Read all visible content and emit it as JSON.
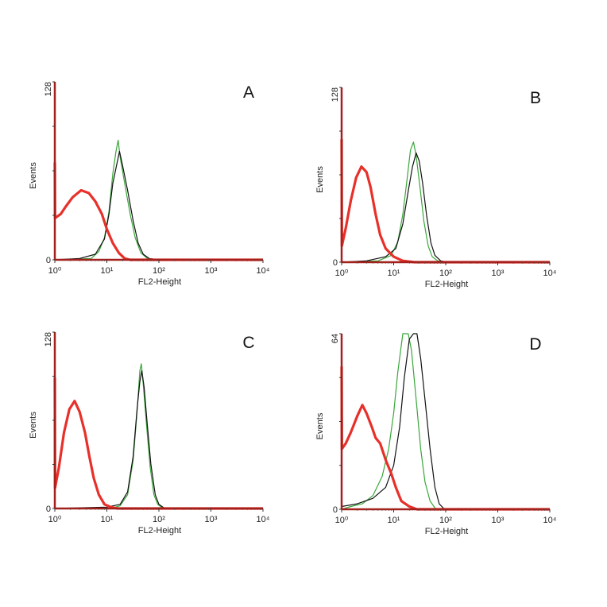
{
  "chart_data": [
    {
      "type": "line",
      "panel_label": "A",
      "xlabel": "FL2-Height",
      "ylabel": "Events",
      "xscale": "log",
      "xlim": [
        1,
        10000
      ],
      "ylim": [
        0,
        128
      ],
      "x_tick_labels": [
        "10⁰",
        "10¹",
        "10²",
        "10³",
        "10⁴"
      ],
      "y_tick_labels": [
        "0",
        "128"
      ],
      "grid": false,
      "series": [
        {
          "color": "#e8302a",
          "style": "thick",
          "points": [
            [
              1,
              70
            ],
            [
              1.01,
              30
            ],
            [
              1.3,
              33
            ],
            [
              1.6,
              38
            ],
            [
              2.2,
              45
            ],
            [
              3.2,
              50
            ],
            [
              4.5,
              48
            ],
            [
              6,
              42
            ],
            [
              8,
              33
            ],
            [
              10,
              22
            ],
            [
              13,
              12
            ],
            [
              17,
              5
            ],
            [
              22,
              1
            ],
            [
              28,
              0
            ],
            [
              10000,
              0
            ]
          ]
        },
        {
          "color": "#3aa63a",
          "style": "thin",
          "points": [
            [
              1,
              0
            ],
            [
              5,
              1
            ],
            [
              7,
              6
            ],
            [
              9,
              16
            ],
            [
              11,
              35
            ],
            [
              13,
              62
            ],
            [
              15,
              78
            ],
            [
              16.5,
              86
            ],
            [
              18,
              74
            ],
            [
              22,
              55
            ],
            [
              28,
              33
            ],
            [
              35,
              16
            ],
            [
              45,
              5
            ],
            [
              60,
              1
            ],
            [
              100,
              0
            ],
            [
              10000,
              0
            ]
          ]
        },
        {
          "color": "#111111",
          "style": "thin",
          "points": [
            [
              1,
              0
            ],
            [
              3,
              1
            ],
            [
              6,
              4
            ],
            [
              9,
              15
            ],
            [
              11,
              33
            ],
            [
              13,
              55
            ],
            [
              15,
              66
            ],
            [
              17.5,
              78
            ],
            [
              20,
              68
            ],
            [
              25,
              50
            ],
            [
              32,
              28
            ],
            [
              40,
              12
            ],
            [
              50,
              4
            ],
            [
              65,
              1
            ],
            [
              100,
              0
            ],
            [
              10000,
              0
            ]
          ]
        }
      ]
    },
    {
      "type": "line",
      "panel_label": "B",
      "xlabel": "FL2-Height",
      "ylabel": "Events",
      "xscale": "log",
      "xlim": [
        1,
        10000
      ],
      "ylim": [
        0,
        128
      ],
      "x_tick_labels": [
        "10⁰",
        "10¹",
        "10²",
        "10³",
        "10⁴"
      ],
      "y_tick_labels": [
        "0",
        "128"
      ],
      "grid": false,
      "series": [
        {
          "color": "#e8302a",
          "style": "thick",
          "points": [
            [
              1,
              90
            ],
            [
              1.01,
              12
            ],
            [
              1.2,
              25
            ],
            [
              1.5,
              45
            ],
            [
              1.9,
              62
            ],
            [
              2.4,
              70
            ],
            [
              3,
              66
            ],
            [
              3.6,
              55
            ],
            [
              4.5,
              35
            ],
            [
              5.5,
              20
            ],
            [
              7,
              10
            ],
            [
              10,
              4
            ],
            [
              15,
              1
            ],
            [
              25,
              0
            ],
            [
              10000,
              0
            ]
          ]
        },
        {
          "color": "#3aa63a",
          "style": "thin",
          "points": [
            [
              1,
              0
            ],
            [
              5,
              1
            ],
            [
              9,
              5
            ],
            [
              12,
              15
            ],
            [
              15,
              35
            ],
            [
              18,
              60
            ],
            [
              21,
              82
            ],
            [
              24,
              88
            ],
            [
              27,
              78
            ],
            [
              32,
              55
            ],
            [
              38,
              30
            ],
            [
              46,
              12
            ],
            [
              55,
              4
            ],
            [
              70,
              1
            ],
            [
              100,
              0
            ],
            [
              10000,
              0
            ]
          ]
        },
        {
          "color": "#111111",
          "style": "thin",
          "points": [
            [
              1,
              0
            ],
            [
              3,
              1
            ],
            [
              7,
              4
            ],
            [
              11,
              10
            ],
            [
              15,
              28
            ],
            [
              19,
              52
            ],
            [
              23,
              70
            ],
            [
              27,
              80
            ],
            [
              31,
              74
            ],
            [
              36,
              58
            ],
            [
              43,
              34
            ],
            [
              52,
              14
            ],
            [
              62,
              5
            ],
            [
              80,
              1
            ],
            [
              110,
              0
            ],
            [
              10000,
              0
            ]
          ]
        }
      ]
    },
    {
      "type": "line",
      "panel_label": "C",
      "xlabel": "FL2-Height",
      "ylabel": "Events",
      "xscale": "log",
      "xlim": [
        1,
        10000
      ],
      "ylim": [
        0,
        128
      ],
      "x_tick_labels": [
        "10⁰",
        "10¹",
        "10²",
        "10³",
        "10⁴"
      ],
      "y_tick_labels": [
        "0",
        "128"
      ],
      "grid": false,
      "series": [
        {
          "color": "#e8302a",
          "style": "thick",
          "points": [
            [
              1,
              95
            ],
            [
              1.01,
              15
            ],
            [
              1.2,
              30
            ],
            [
              1.5,
              55
            ],
            [
              1.9,
              72
            ],
            [
              2.4,
              78
            ],
            [
              3,
              70
            ],
            [
              3.8,
              55
            ],
            [
              4.6,
              38
            ],
            [
              5.6,
              22
            ],
            [
              7,
              10
            ],
            [
              9,
              3
            ],
            [
              12,
              1
            ],
            [
              16,
              0
            ],
            [
              10000,
              0
            ]
          ]
        },
        {
          "color": "#3aa63a",
          "style": "thin",
          "points": [
            [
              1,
              0
            ],
            [
              12,
              0
            ],
            [
              18,
              2
            ],
            [
              25,
              10
            ],
            [
              32,
              35
            ],
            [
              38,
              70
            ],
            [
              43,
              100
            ],
            [
              46,
              105
            ],
            [
              50,
              90
            ],
            [
              58,
              60
            ],
            [
              68,
              30
            ],
            [
              80,
              10
            ],
            [
              95,
              3
            ],
            [
              120,
              0
            ],
            [
              10000,
              0
            ]
          ]
        },
        {
          "color": "#111111",
          "style": "thin",
          "points": [
            [
              1,
              0
            ],
            [
              10,
              1
            ],
            [
              18,
              3
            ],
            [
              25,
              12
            ],
            [
              32,
              38
            ],
            [
              38,
              72
            ],
            [
              43,
              92
            ],
            [
              47,
              100
            ],
            [
              52,
              88
            ],
            [
              60,
              60
            ],
            [
              70,
              32
            ],
            [
              85,
              10
            ],
            [
              100,
              3
            ],
            [
              130,
              0
            ],
            [
              10000,
              0
            ]
          ]
        }
      ]
    },
    {
      "type": "line",
      "panel_label": "D",
      "xlabel": "FL2-Height",
      "ylabel": "Events",
      "xscale": "log",
      "xlim": [
        1,
        10000
      ],
      "ylim": [
        0,
        64
      ],
      "x_tick_labels": [
        "10⁰",
        "10¹",
        "10²",
        "10³",
        "10⁴"
      ],
      "y_tick_labels": [
        "0",
        "64"
      ],
      "grid": false,
      "series": [
        {
          "color": "#e8302a",
          "style": "thick",
          "points": [
            [
              1,
              52
            ],
            [
              1.01,
              22
            ],
            [
              1.2,
              24
            ],
            [
              1.5,
              28
            ],
            [
              2,
              34
            ],
            [
              2.5,
              38
            ],
            [
              3,
              35
            ],
            [
              3.8,
              30
            ],
            [
              4.5,
              26
            ],
            [
              5.5,
              24
            ],
            [
              7,
              18
            ],
            [
              9,
              13
            ],
            [
              11,
              8
            ],
            [
              14,
              3
            ],
            [
              20,
              1
            ],
            [
              28,
              0
            ],
            [
              10000,
              0
            ]
          ]
        },
        {
          "color": "#3aa63a",
          "style": "thin",
          "points": [
            [
              1,
              0
            ],
            [
              1.5,
              1
            ],
            [
              2.5,
              2
            ],
            [
              4,
              5
            ],
            [
              6,
              12
            ],
            [
              8,
              22
            ],
            [
              10,
              35
            ],
            [
              12,
              50
            ],
            [
              15,
              64
            ],
            [
              19,
              64
            ],
            [
              22,
              58
            ],
            [
              27,
              40
            ],
            [
              33,
              22
            ],
            [
              40,
              10
            ],
            [
              50,
              3
            ],
            [
              65,
              0
            ],
            [
              10000,
              0
            ]
          ]
        },
        {
          "color": "#111111",
          "style": "thin",
          "points": [
            [
              1,
              1
            ],
            [
              2,
              2
            ],
            [
              4,
              4
            ],
            [
              7,
              8
            ],
            [
              10,
              16
            ],
            [
              13,
              30
            ],
            [
              16,
              48
            ],
            [
              20,
              62
            ],
            [
              24,
              64
            ],
            [
              28,
              64
            ],
            [
              33,
              55
            ],
            [
              40,
              40
            ],
            [
              50,
              22
            ],
            [
              62,
              8
            ],
            [
              75,
              2
            ],
            [
              95,
              0
            ],
            [
              10000,
              0
            ]
          ]
        }
      ]
    }
  ]
}
